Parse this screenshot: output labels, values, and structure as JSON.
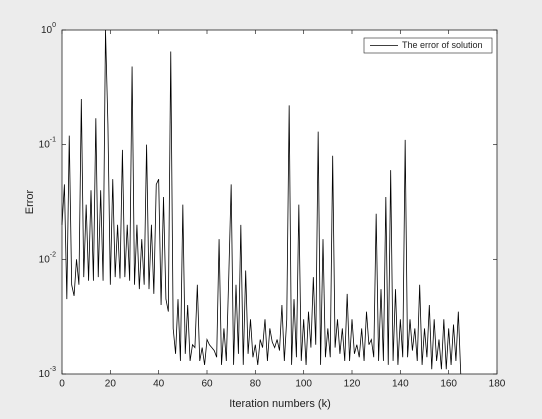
{
  "chart_data": {
    "type": "line",
    "x_label": "Iteration numbers (k)",
    "y_label": "Error",
    "x": [
      0,
      1,
      2,
      3,
      4,
      5,
      6,
      7,
      8,
      9,
      10,
      11,
      12,
      13,
      14,
      15,
      16,
      17,
      18,
      19,
      20,
      21,
      22,
      23,
      24,
      25,
      26,
      27,
      28,
      29,
      30,
      31,
      32,
      33,
      34,
      35,
      36,
      37,
      38,
      39,
      40,
      41,
      42,
      43,
      44,
      45,
      46,
      47,
      48,
      49,
      50,
      51,
      52,
      53,
      54,
      55,
      56,
      57,
      58,
      59,
      60,
      61,
      62,
      63,
      64,
      65,
      66,
      67,
      68,
      69,
      70,
      71,
      72,
      73,
      74,
      75,
      76,
      77,
      78,
      79,
      80,
      81,
      82,
      83,
      84,
      85,
      86,
      87,
      88,
      89,
      90,
      91,
      92,
      93,
      94,
      95,
      96,
      97,
      98,
      99,
      100,
      101,
      102,
      103,
      104,
      105,
      106,
      107,
      108,
      109,
      110,
      111,
      112,
      113,
      114,
      115,
      116,
      117,
      118,
      119,
      120,
      121,
      122,
      123,
      124,
      125,
      126,
      127,
      128,
      129,
      130,
      131,
      132,
      133,
      134,
      135,
      136,
      137,
      138,
      139,
      140,
      141,
      142,
      143,
      144,
      145,
      146,
      147,
      148,
      149,
      150,
      151,
      152,
      153,
      154,
      155,
      156,
      157,
      158,
      159,
      160,
      161,
      162,
      163,
      164,
      165
    ],
    "series": [
      {
        "name": "The error of solution",
        "color": "#000000",
        "values": [
          0.02,
          0.045,
          0.0045,
          0.12,
          0.006,
          0.0048,
          0.01,
          0.006,
          0.25,
          0.007,
          0.03,
          0.0065,
          0.04,
          0.0065,
          0.17,
          0.007,
          0.04,
          0.0065,
          1.0,
          0.15,
          0.006,
          0.05,
          0.007,
          0.02,
          0.0068,
          0.09,
          0.007,
          0.02,
          0.0065,
          0.48,
          0.006,
          0.02,
          0.0055,
          0.015,
          0.006,
          0.1,
          0.0055,
          0.02,
          0.005,
          0.045,
          0.05,
          0.004,
          0.035,
          0.0045,
          0.0035,
          0.65,
          0.0025,
          0.0015,
          0.0045,
          0.0013,
          0.03,
          0.0015,
          0.004,
          0.0013,
          0.0018,
          0.0017,
          0.006,
          0.0013,
          0.0017,
          0.0012,
          0.002,
          0.0018,
          0.0017,
          0.0016,
          0.0014,
          0.015,
          0.0012,
          0.0025,
          0.0013,
          0.007,
          0.045,
          0.0012,
          0.006,
          0.0015,
          0.02,
          0.0012,
          0.008,
          0.0015,
          0.003,
          0.0014,
          0.0018,
          0.0012,
          0.002,
          0.0017,
          0.003,
          0.0013,
          0.0025,
          0.0019,
          0.0017,
          0.002,
          0.0016,
          0.004,
          0.0013,
          0.003,
          0.22,
          0.0012,
          0.0045,
          0.0014,
          0.03,
          0.0013,
          0.003,
          0.0012,
          0.0035,
          0.0017,
          0.007,
          0.0018,
          0.13,
          0.0012,
          0.015,
          0.0014,
          0.0025,
          0.0014,
          0.08,
          0.0017,
          0.003,
          0.0015,
          0.0025,
          0.0013,
          0.005,
          0.0013,
          0.003,
          0.0015,
          0.0018,
          0.0014,
          0.0025,
          0.0013,
          0.0035,
          0.0018,
          0.002,
          0.0014,
          0.025,
          0.0013,
          0.0055,
          0.0013,
          0.035,
          0.0012,
          0.06,
          0.0013,
          0.0055,
          0.0012,
          0.003,
          0.0014,
          0.11,
          0.0014,
          0.003,
          0.0016,
          0.0025,
          0.0013,
          0.006,
          0.0012,
          0.0025,
          0.0014,
          0.004,
          0.0011,
          0.003,
          0.0013,
          0.002,
          0.0011,
          0.003,
          0.0011,
          0.0025,
          0.0012,
          0.0027,
          0.0013,
          0.0035,
          0.001
        ]
      }
    ],
    "xlim": [
      0,
      180
    ],
    "xticks": [
      0,
      20,
      40,
      60,
      80,
      100,
      120,
      140,
      160,
      180
    ],
    "ylim": [
      0.001,
      1
    ],
    "y_scale": "log",
    "yticks": [
      {
        "value": 0.001,
        "label": "10",
        "exponent": "-3"
      },
      {
        "value": 0.01,
        "label": "10",
        "exponent": "-2"
      },
      {
        "value": 0.1,
        "label": "10",
        "exponent": "-1"
      },
      {
        "value": 1,
        "label": "10",
        "exponent": "0"
      }
    ],
    "legend": "upper right",
    "grid": false
  }
}
